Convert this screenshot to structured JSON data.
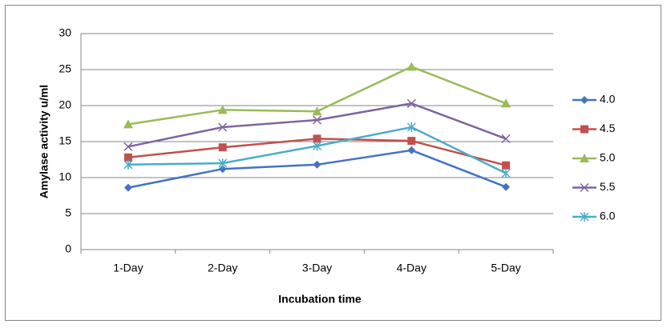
{
  "chart_data": {
    "type": "line",
    "x_label": "Incubation time",
    "y_label": "Amylase activity u/ml",
    "categories": [
      "1-Day",
      "2-Day",
      "3-Day",
      "4-Day",
      "5-Day"
    ],
    "series": [
      {
        "name": "4.0",
        "color": "#4472c4",
        "marker": "diamond",
        "values": [
          8.6,
          11.2,
          11.8,
          13.8,
          8.7
        ]
      },
      {
        "name": "4.5",
        "color": "#c0504d",
        "marker": "square",
        "values": [
          12.8,
          14.2,
          15.4,
          15.1,
          11.7
        ]
      },
      {
        "name": "5.0",
        "color": "#9bbb59",
        "marker": "triangle",
        "values": [
          17.4,
          19.4,
          19.2,
          25.4,
          20.3
        ]
      },
      {
        "name": "5.5",
        "color": "#8064a2",
        "marker": "x",
        "values": [
          14.3,
          17.0,
          18.0,
          20.3,
          15.4
        ]
      },
      {
        "name": "6.0",
        "color": "#4bacc6",
        "marker": "asterisk",
        "values": [
          11.8,
          12.0,
          14.4,
          17.0,
          10.6
        ]
      }
    ],
    "ylim": [
      0,
      30
    ],
    "yticks": [
      0,
      5,
      10,
      15,
      20,
      25,
      30
    ],
    "grid": true,
    "legend": "right"
  }
}
